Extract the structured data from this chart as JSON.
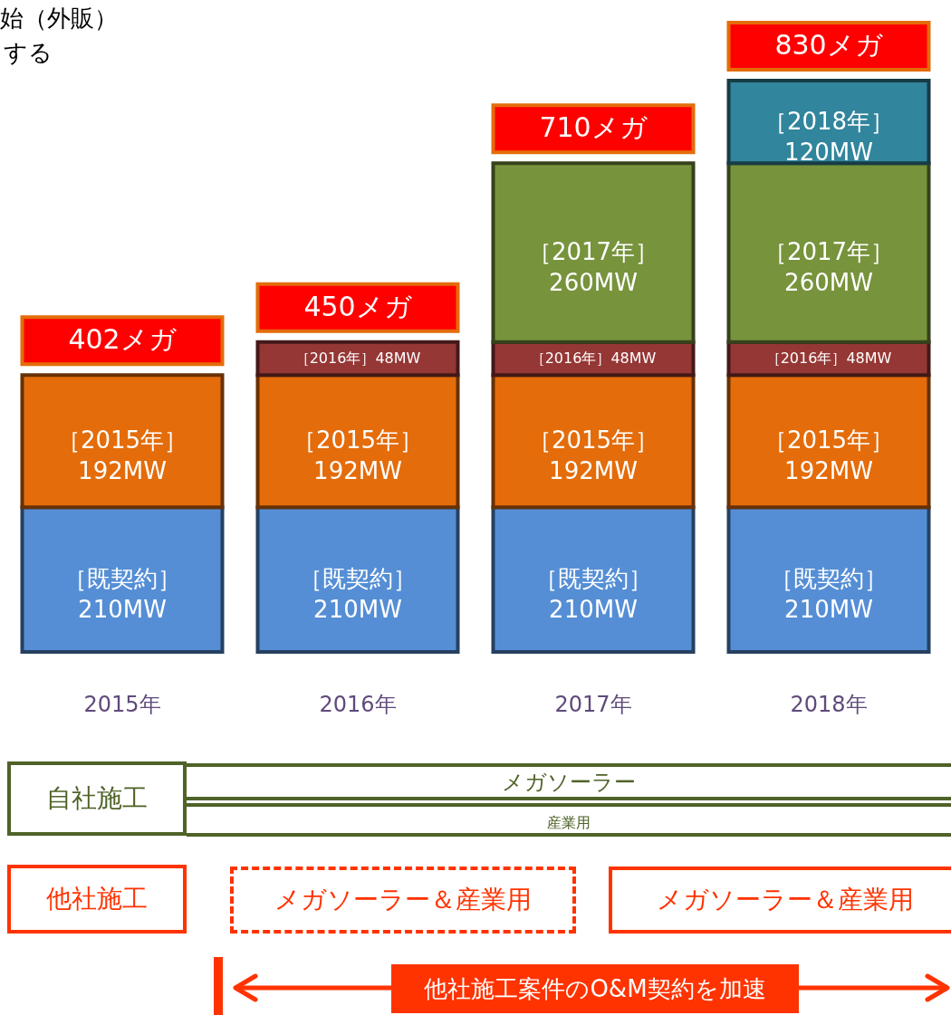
{
  "chart_data": {
    "type": "bar",
    "stacked": true,
    "categories": [
      "2015年",
      "2016年",
      "2017年",
      "2018年"
    ],
    "series": [
      {
        "color": "#558ed5",
        "values": [
          210,
          210,
          210,
          210
        ],
        "value_labels": [
          "［既契約］\n210MW",
          "［既契約］\n210MW",
          "［既契約］\n210MW",
          "［既契約］\n210MW"
        ]
      },
      {
        "color": "#e46c0a",
        "values": [
          192,
          192,
          192,
          192
        ],
        "value_labels": [
          "［2015年］\n192MW",
          "［2015年］\n192MW",
          "［2015年］\n192MW",
          "［2015年］\n192MW"
        ]
      },
      {
        "color": "#953735",
        "values": [
          null,
          48,
          48,
          48
        ],
        "value_labels": [
          null,
          "［2016年］48MW",
          "［2016年］48MW",
          "［2016年］48MW"
        ]
      },
      {
        "color": "#77933c",
        "values": [
          null,
          null,
          260,
          260
        ],
        "value_labels": [
          null,
          null,
          "［2017年］\n260MW",
          "［2017年］\n260MW"
        ]
      },
      {
        "color": "#31859c",
        "values": [
          null,
          null,
          null,
          120
        ],
        "value_labels": [
          null,
          null,
          null,
          "［2018年］\n120MW"
        ]
      }
    ],
    "totals": [
      "402メガ",
      "450メガ",
      "710メガ",
      "830メガ"
    ],
    "annotations": [
      "始（外販）",
      "する",
      "自社施工",
      "メガソーラー",
      "産業用",
      "他社施工",
      "メガソーラー＆産業用",
      "メガソーラー＆産業用",
      "他社施工案件のO&M契約を加速"
    ]
  }
}
